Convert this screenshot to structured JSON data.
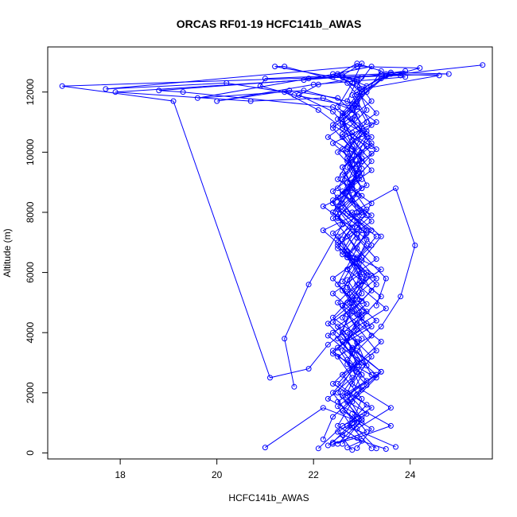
{
  "chart_data": {
    "type": "line",
    "title": "ORCAS RF01-19 HCFC141b_AWAS",
    "xlabel": "HCFC141b_AWAS",
    "ylabel": "Altitude (m)",
    "xlim": [
      16.5,
      25.7
    ],
    "ylim": [
      -200,
      13500
    ],
    "xticks": [
      18,
      20,
      22,
      24
    ],
    "yticks": [
      0,
      2000,
      4000,
      6000,
      8000,
      10000,
      12000
    ],
    "grid": false,
    "legend": "none",
    "series_color": "#0000FF",
    "series": [
      {
        "x": [
          22.1,
          22.6,
          23.2,
          22.4,
          22.9,
          22.3,
          23.0,
          22.7,
          23.4,
          22.5,
          22.8,
          22.2,
          23.1,
          22.9,
          22.4,
          23.3,
          22.7,
          22.9,
          22.5,
          23.0,
          22.6,
          22.8,
          23.2,
          22.7,
          22.4,
          23.1,
          22.9,
          22.6,
          23.0,
          22.3,
          21.9,
          21.1,
          19.1,
          16.8,
          23.5,
          25.5
        ],
        "y": [
          150,
          900,
          1500,
          2300,
          3100,
          3900,
          4600,
          5300,
          6100,
          6800,
          7500,
          8200,
          8900,
          9600,
          10300,
          11000,
          11700,
          12400,
          12600,
          12000,
          11200,
          10400,
          9700,
          8800,
          8000,
          7100,
          6300,
          5400,
          4500,
          3600,
          2800,
          2500,
          11700,
          12200,
          12550,
          12900
        ]
      },
      {
        "x": [
          22.8,
          22.5,
          23.1,
          22.7,
          22.9,
          22.4,
          23.2,
          22.6,
          23.0,
          22.8,
          22.5,
          23.1,
          22.7,
          22.9,
          23.3,
          22.6,
          22.1,
          21.4,
          20.2,
          17.7,
          22.9,
          24.2,
          23.4,
          22.8,
          23.0,
          22.7,
          22.9,
          22.6,
          23.1,
          22.8,
          22.5,
          23.0,
          22.7,
          22.9,
          22.4,
          22.8
        ],
        "y": [
          100,
          700,
          1300,
          2000,
          2700,
          3400,
          4200,
          4900,
          5700,
          6400,
          7200,
          7900,
          8700,
          9400,
          10100,
          10800,
          11400,
          12000,
          12300,
          12100,
          12850,
          12800,
          12450,
          11600,
          10800,
          10000,
          9100,
          8300,
          7400,
          6500,
          5600,
          4700,
          3800,
          2900,
          2000,
          1100
        ]
      },
      {
        "x": [
          23.5,
          22.6,
          23.0,
          22.3,
          22.8,
          22.5,
          23.2,
          22.9,
          22.4,
          23.0,
          22.7,
          22.2,
          23.1,
          22.8,
          22.6,
          23.2,
          22.9,
          22.4,
          19.3,
          18.8,
          22.6,
          24.8,
          23.6,
          22.9,
          23.3,
          22.6,
          23.0,
          22.8,
          22.5,
          23.1,
          22.7,
          23.0,
          22.6,
          22.9,
          22.4,
          23.3,
          22.8,
          22.5,
          23.0,
          22.7
        ],
        "y": [
          130,
          600,
          1200,
          1800,
          2500,
          3200,
          3900,
          4600,
          5300,
          6000,
          6700,
          7400,
          8100,
          8800,
          9500,
          10200,
          10900,
          11500,
          12000,
          12050,
          12500,
          12600,
          12650,
          12000,
          11300,
          10500,
          9700,
          8900,
          8100,
          7300,
          6500,
          5700,
          4900,
          4100,
          3300,
          2500,
          1700,
          900,
          400,
          180
        ]
      },
      {
        "x": [
          22.9,
          23.2,
          22.6,
          23.0,
          22.8,
          22.5,
          23.1,
          22.7,
          23.3,
          22.9,
          22.4,
          23.0,
          22.6,
          23.2,
          22.8,
          22.4,
          22.9,
          21.6,
          20.9,
          21.0,
          23.4,
          24.6,
          23.0,
          22.7,
          23.1,
          22.8,
          22.5,
          23.0,
          22.6,
          22.9,
          23.2,
          22.7,
          23.4,
          22.8,
          22.5,
          23.0,
          22.6
        ],
        "y": [
          160,
          800,
          1400,
          2100,
          2800,
          3500,
          4300,
          5000,
          5800,
          6500,
          7300,
          8000,
          8700,
          9400,
          10100,
          10800,
          11500,
          11900,
          12200,
          12450,
          12600,
          12550,
          12100,
          11300,
          10500,
          9600,
          8800,
          7900,
          7100,
          6200,
          5400,
          4600,
          3700,
          2800,
          2000,
          1100,
          300
        ]
      },
      {
        "x": [
          21.0,
          22.2,
          23.0,
          22.6,
          23.3,
          22.8,
          22.4,
          23.1,
          22.7,
          22.9,
          22.5,
          23.2,
          22.8,
          22.6,
          23.0,
          22.3,
          22.9,
          22.5,
          21.5,
          20.0,
          22.0,
          23.9,
          23.6,
          23.0,
          22.8,
          23.2,
          22.6,
          22.9,
          22.5,
          23.1,
          22.7,
          23.4,
          22.9,
          22.6,
          23.0,
          22.7,
          23.6,
          22.9,
          22.4,
          23.1,
          22.8
        ],
        "y": [
          180,
          1500,
          1000,
          1900,
          2600,
          3300,
          4000,
          4700,
          5500,
          6200,
          6900,
          7700,
          8400,
          9100,
          9800,
          10500,
          11200,
          11800,
          12050,
          11700,
          12250,
          12500,
          12600,
          12000,
          11100,
          10300,
          9500,
          8600,
          7800,
          6900,
          6100,
          5200,
          4300,
          3400,
          2600,
          1700,
          900,
          500,
          300,
          700,
          1300
        ]
      },
      {
        "x": [
          22.3,
          22.9,
          22.5,
          23.1,
          22.7,
          23.0,
          22.4,
          22.8,
          23.2,
          22.6,
          22.9,
          22.5,
          23.0,
          22.7,
          23.1,
          22.4,
          22.9,
          21.8,
          19.6,
          21.9,
          23.8,
          23.5,
          22.8,
          23.1,
          22.6,
          22.9,
          22.4,
          23.0,
          22.7,
          23.3,
          22.8,
          22.5,
          23.0,
          22.6
        ],
        "y": [
          250,
          1000,
          1700,
          2400,
          3100,
          3800,
          4500,
          5200,
          5900,
          6600,
          7300,
          8100,
          8800,
          9500,
          10200,
          10900,
          11600,
          12050,
          11800,
          12450,
          12550,
          12600,
          11900,
          11000,
          10100,
          9200,
          8300,
          7400,
          6500,
          5600,
          4700,
          3800,
          2900,
          2000
        ]
      },
      {
        "x": [
          23.7,
          22.7,
          23.1,
          22.5,
          22.9,
          22.6,
          23.3,
          22.8,
          22.4,
          23.0,
          22.7,
          23.2,
          22.6,
          22.9,
          22.5,
          23.1,
          22.8,
          22.2,
          20.7,
          17.9,
          21.8,
          23.2,
          22.9,
          23.1,
          22.6,
          23.0,
          22.8,
          22.5,
          23.2,
          22.7,
          23.0,
          22.5,
          22.9,
          23.3,
          22.6,
          23.0,
          22.8,
          22.4
        ],
        "y": [
          200,
          900,
          1600,
          2300,
          3000,
          3700,
          4400,
          5100,
          5800,
          6500,
          7200,
          7900,
          8600,
          9300,
          10000,
          10700,
          11400,
          11800,
          11700,
          12000,
          12400,
          12850,
          12200,
          11400,
          10600,
          9800,
          9000,
          8200,
          7400,
          6600,
          5800,
          5000,
          4200,
          3400,
          2600,
          1800,
          1000,
          350
        ]
      },
      {
        "x": [
          22.5,
          23.0,
          22.7,
          23.4,
          22.8,
          22.3,
          22.9,
          23.1,
          22.6,
          22.9,
          23.2,
          22.5,
          22.8,
          23.0,
          22.6,
          22.9,
          22.7,
          21.4,
          21.2,
          22.4,
          22.9,
          23.4,
          23.1,
          22.6,
          23.0,
          22.7,
          22.9,
          22.5,
          23.1,
          22.8,
          22.6,
          23.0
        ],
        "y": [
          300,
          1100,
          1900,
          2700,
          3500,
          4300,
          5100,
          5900,
          6700,
          7500,
          8300,
          9100,
          9900,
          10600,
          11300,
          11900,
          12300,
          12850,
          12850,
          12500,
          12950,
          12700,
          12000,
          11000,
          10000,
          9000,
          8000,
          7000,
          6000,
          5000,
          4000,
          3000
        ]
      },
      {
        "x": [
          23.2,
          22.8,
          22.5,
          23.1,
          22.7,
          22.9,
          22.4,
          23.0,
          22.7,
          23.3,
          22.9,
          22.5,
          23.0,
          22.6,
          23.2,
          22.8,
          22.4,
          21.7,
          22.1,
          23.0,
          23.9,
          23.5,
          22.9,
          23.2,
          22.7,
          23.0,
          22.5,
          22.9,
          23.2,
          22.7,
          23.0,
          22.6,
          22.9,
          23.1
        ],
        "y": [
          150,
          850,
          1550,
          2250,
          2950,
          3650,
          4350,
          5050,
          5750,
          6450,
          7150,
          7850,
          8550,
          9250,
          9950,
          10650,
          11350,
          11900,
          12250,
          12500,
          12700,
          12550,
          11700,
          10900,
          10100,
          9300,
          8500,
          7700,
          6900,
          6100,
          5300,
          4500,
          3700,
          2900
        ]
      },
      {
        "x": [
          21.6,
          21.4,
          21.9,
          22.6,
          22.4,
          23.0,
          22.7,
          23.2,
          22.5,
          22.9,
          23.1,
          22.6,
          23.0,
          22.8,
          22.5,
          23.1,
          22.7,
          23.0,
          22.4,
          22.9,
          23.5,
          23.3
        ],
        "y": [
          2200,
          3800,
          5600,
          7600,
          8400,
          9100,
          9800,
          10500,
          11100,
          11700,
          12200,
          12550,
          12950,
          12300,
          11500,
          10600,
          9700,
          8800,
          7800,
          6800,
          5800,
          4900
        ]
      },
      {
        "x": [
          23.3,
          22.9,
          23.6,
          22.8,
          23.2,
          22.7,
          23.5,
          22.9,
          23.0,
          23.4,
          22.8,
          23.7,
          24.1,
          23.8,
          23.4,
          22.9,
          23.2
        ],
        "y": [
          150,
          800,
          1500,
          2300,
          3200,
          4000,
          4800,
          5600,
          6400,
          7200,
          8000,
          8800,
          6900,
          5200,
          4200,
          3400,
          2600
        ]
      },
      {
        "x": [
          22.2,
          22.4,
          22.9,
          23.4,
          22.8,
          22.5,
          23.1,
          22.6,
          22.9,
          23.3,
          22.7,
          22.4,
          23.0,
          22.8,
          22.6,
          23.2,
          22.9,
          22.4,
          23.0
        ],
        "y": [
          450,
          1200,
          1950,
          2700,
          3450,
          4200,
          4950,
          5700,
          6450,
          7200,
          7950,
          8700,
          9450,
          10200,
          10950,
          11700,
          12350,
          12600,
          12100
        ]
      }
    ]
  }
}
